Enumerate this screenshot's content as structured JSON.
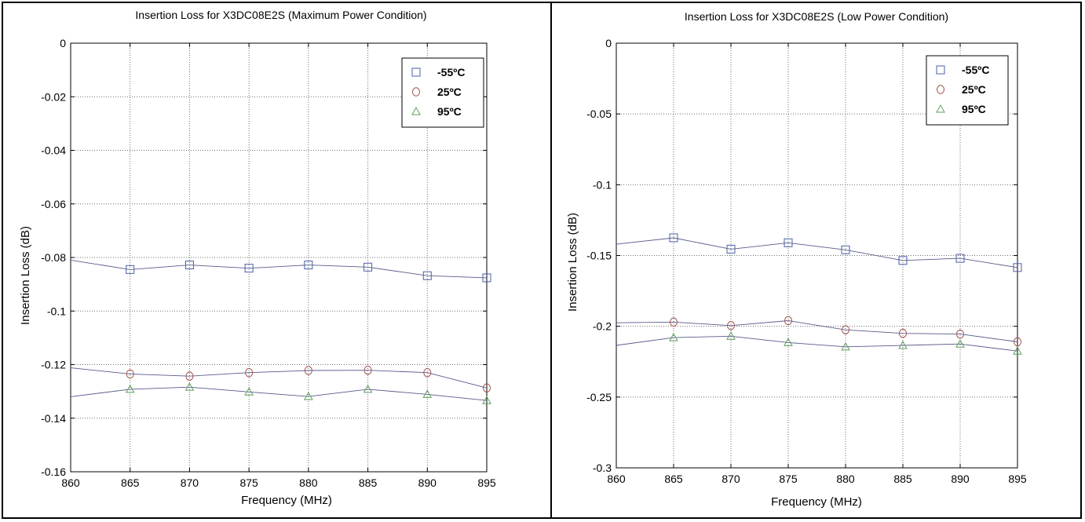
{
  "chart_data": [
    {
      "type": "line",
      "title": "Insertion Loss for X3DC08E2S (Maximum Power Condition)",
      "xlabel": "Frequency (MHz)",
      "ylabel": "Insertion Loss (dB)",
      "xlim": [
        860,
        895
      ],
      "ylim": [
        -0.16,
        0
      ],
      "xticks": [
        "860",
        "865",
        "870",
        "875",
        "880",
        "885",
        "890",
        "895"
      ],
      "yticks": [
        "0",
        "-0.02",
        "-0.04",
        "-0.06",
        "-0.08",
        "-0.1",
        "-0.12",
        "-0.14",
        "-0.16"
      ],
      "grid": true,
      "legend_position": "top-right",
      "series": [
        {
          "name": "-55ºC",
          "marker": "square",
          "color": "#4b5fa6",
          "line": [
            [
              860,
              -0.081
            ]
          ],
          "points": [
            [
              865,
              -0.0845
            ],
            [
              870,
              -0.0828
            ],
            [
              875,
              -0.084
            ],
            [
              880,
              -0.0828
            ],
            [
              885,
              -0.0836
            ],
            [
              890,
              -0.0868
            ],
            [
              895,
              -0.0876
            ]
          ]
        },
        {
          "name": "25ºC",
          "marker": "circle",
          "color": "#a0524f",
          "line": [
            [
              860,
              -0.1212
            ]
          ],
          "points": [
            [
              865,
              -0.1235
            ],
            [
              870,
              -0.1243
            ],
            [
              875,
              -0.123
            ],
            [
              880,
              -0.1222
            ],
            [
              885,
              -0.1221
            ],
            [
              890,
              -0.123
            ],
            [
              895,
              -0.1287
            ]
          ]
        },
        {
          "name": "95ºC",
          "marker": "triangle",
          "color": "#5f9e5f",
          "line": [
            [
              860,
              -0.132
            ]
          ],
          "points": [
            [
              865,
              -0.1292
            ],
            [
              870,
              -0.1284
            ],
            [
              875,
              -0.1302
            ],
            [
              880,
              -0.1319
            ],
            [
              885,
              -0.1292
            ],
            [
              890,
              -0.1311
            ],
            [
              895,
              -0.1334
            ]
          ]
        }
      ]
    },
    {
      "type": "line",
      "title": "Insertion Loss for X3DC08E2S (Low Power Condition)",
      "xlabel": "Frequency (MHz)",
      "ylabel": "Insertion Loss (dB)",
      "xlim": [
        860,
        895
      ],
      "ylim": [
        -0.3,
        0
      ],
      "xticks": [
        "860",
        "865",
        "870",
        "875",
        "880",
        "885",
        "890",
        "895"
      ],
      "yticks": [
        "0",
        "-0.05",
        "-0.1",
        "-0.15",
        "-0.2",
        "-0.25",
        "-0.3"
      ],
      "grid": true,
      "legend_position": "top-right",
      "series": [
        {
          "name": "-55ºC",
          "marker": "square",
          "color": "#4b5fa6",
          "line": [
            [
              860,
              -0.142
            ]
          ],
          "points": [
            [
              865,
              -0.1375
            ],
            [
              870,
              -0.1455
            ],
            [
              875,
              -0.141
            ],
            [
              880,
              -0.146
            ],
            [
              885,
              -0.1535
            ],
            [
              890,
              -0.152
            ],
            [
              895,
              -0.1585
            ]
          ]
        },
        {
          "name": "25ºC",
          "marker": "circle",
          "color": "#a0524f",
          "line": [
            [
              860,
              -0.1975
            ]
          ],
          "points": [
            [
              865,
              -0.197
            ],
            [
              870,
              -0.1995
            ],
            [
              875,
              -0.196
            ],
            [
              880,
              -0.2025
            ],
            [
              885,
              -0.205
            ],
            [
              890,
              -0.2055
            ],
            [
              895,
              -0.211
            ]
          ]
        },
        {
          "name": "95ºC",
          "marker": "triangle",
          "color": "#5f9e5f",
          "line": [
            [
              860,
              -0.2135
            ]
          ],
          "points": [
            [
              865,
              -0.208
            ],
            [
              870,
              -0.207
            ],
            [
              875,
              -0.2115
            ],
            [
              880,
              -0.2145
            ],
            [
              885,
              -0.2135
            ],
            [
              890,
              -0.2125
            ],
            [
              895,
              -0.2175
            ]
          ]
        }
      ]
    }
  ]
}
